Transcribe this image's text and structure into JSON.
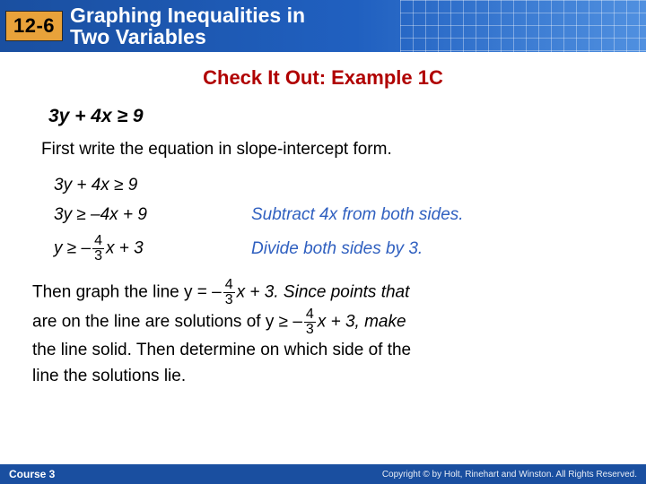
{
  "header": {
    "badge": "12-6",
    "title_line1": "Graphing Inequalities in",
    "title_line2": "Two Variables"
  },
  "check_title": "Check It Out: Example 1C",
  "problem": "3y + 4x ≥ 9",
  "intro": "First write the equation in slope-intercept form.",
  "steps": {
    "s1_expr": "3y + 4x ≥ 9",
    "s2_expr": "3y ≥ –4x + 9",
    "s2_note": "Subtract 4x from both sides.",
    "s3_pre": "y ≥ –",
    "s3_frac_num": "4",
    "s3_frac_den": "3",
    "s3_post": "x + 3",
    "s3_note": "Divide both sides by 3."
  },
  "para": {
    "p1": "Then graph the line y = –",
    "p1b": "x + 3. Since points that",
    "p2a": "are on the line are solutions of  y ≥ –",
    "p2b": "x + 3, make",
    "p3": "the line solid. Then determine on which side of the",
    "p4": "line the solutions lie.",
    "frac_num": "4",
    "frac_den": "3"
  },
  "footer": {
    "course": "Course 3",
    "copyright": "Copyright © by Holt, Rinehart and Winston. All Rights Reserved."
  },
  "colors": {
    "header_bg": "#1a4fa0",
    "badge_bg": "#e8a23a",
    "check_title": "#b00000",
    "note_color": "#3060c0"
  }
}
